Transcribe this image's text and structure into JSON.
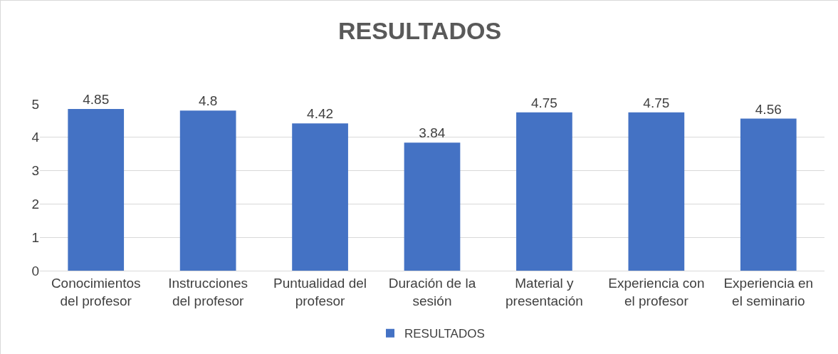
{
  "chart_data": {
    "type": "bar",
    "title": "RESULTADOS",
    "categories": [
      "Conocimientos del profesor",
      "Instrucciones del profesor",
      "Puntualidad del profesor",
      "Duración de la sesión",
      "Material y presentación",
      "Experiencia con el profesor",
      "Experiencia en el seminario"
    ],
    "series": [
      {
        "name": "RESULTADOS",
        "color": "#4472c4",
        "values": [
          4.85,
          4.8,
          4.42,
          3.84,
          4.75,
          4.75,
          4.56
        ]
      }
    ],
    "ylim": [
      0,
      5
    ],
    "yticks": [
      0,
      1,
      2,
      3,
      4,
      5
    ],
    "grid": "y",
    "legend": "bottom",
    "data_labels": true
  }
}
